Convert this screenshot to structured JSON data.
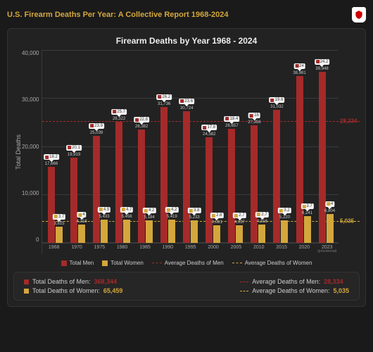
{
  "header": {
    "title": "U.S. Firearm Deaths Per Year: A Collective Report 1968-2024",
    "badge_text": "AMMO.COM"
  },
  "chart": {
    "type": "bar",
    "title": "Firearm Deaths by Year 1968 - 2024",
    "ylabel": "Total Deaths",
    "ymax": 45000,
    "yticks": [
      0,
      10000,
      20000,
      30000,
      40000
    ],
    "ytick_labels": [
      "0",
      "10,000",
      "20,000",
      "30,000",
      "40,000"
    ],
    "men_color": "#a52a2a",
    "women_color": "#d4a73c",
    "background_color": "#222222",
    "grid_color": "#3a3a3a",
    "avg_men": 28334,
    "avg_men_label": "28,334",
    "avg_women": 5035,
    "avg_women_label": "5,035",
    "years": [
      {
        "year": "1968",
        "men": 17666,
        "men_lbl": "17,666",
        "men_rate": "18.2",
        "women": 3815,
        "women_lbl": "3,815",
        "women_rate": "3.7"
      },
      {
        "year": "1970",
        "men": 19919,
        "men_lbl": "19,919",
        "men_rate": "20.1",
        "women": 4218,
        "women_lbl": "4,218",
        "women_rate": "4"
      },
      {
        "year": "1975",
        "men": 25039,
        "men_lbl": "25,039",
        "men_rate": "23.9",
        "women": 5433,
        "women_lbl": "5,433",
        "women_rate": "4.9"
      },
      {
        "year": "1980",
        "men": 28322,
        "men_lbl": "28,322",
        "men_rate": "25.7",
        "women": 5458,
        "women_lbl": "5,458",
        "women_rate": "4.7"
      },
      {
        "year": "1985",
        "men": 26382,
        "men_lbl": "26,382",
        "men_rate": "22.8",
        "women": 5184,
        "women_lbl": "5,184",
        "women_rate": "4.2"
      },
      {
        "year": "1990",
        "men": 31736,
        "men_lbl": "31,736",
        "men_rate": "26.2",
        "women": 5419,
        "women_lbl": "5,419",
        "women_rate": "4.2"
      },
      {
        "year": "1995",
        "men": 30724,
        "men_lbl": "30,724",
        "men_rate": "23.6",
        "women": 5233,
        "women_lbl": "5,233",
        "women_rate": "3.8"
      },
      {
        "year": "2000",
        "men": 24582,
        "men_lbl": "24,582",
        "men_rate": "17.8",
        "women": 4081,
        "women_lbl": "4,081",
        "women_rate": "2.8"
      },
      {
        "year": "2005",
        "men": 26657,
        "men_lbl": "26,657",
        "men_rate": "18.4",
        "women": 4037,
        "women_lbl": "4,037",
        "women_rate": "2.7"
      },
      {
        "year": "2010",
        "men": 27356,
        "men_lbl": "27,356",
        "men_rate": "18",
        "women": 4316,
        "women_lbl": "4,316",
        "women_rate": "2.7"
      },
      {
        "year": "2015",
        "men": 31032,
        "men_lbl": "31,032",
        "men_rate": "19.6",
        "women": 5220,
        "women_lbl": "5,220",
        "women_rate": "3.2"
      },
      {
        "year": "2020",
        "men": 38981,
        "men_lbl": "38,981",
        "men_rate": "24",
        "women": 6241,
        "women_lbl": "6,241",
        "women_rate": "3.7"
      },
      {
        "year": "2023",
        "men": 39948,
        "men_lbl": "39,948",
        "men_rate": "24.2",
        "women": 6804,
        "women_lbl": "6,804",
        "women_rate": "4",
        "provisional": "(provisional)"
      }
    ]
  },
  "legend": {
    "men": "Total Men",
    "women": "Total Women",
    "avg_men": "Average Deaths of Men",
    "avg_women": "Average Deaths of Women"
  },
  "summary": {
    "total_men_k": "Total Deaths of Men:",
    "total_men_v": "368,344",
    "total_women_k": "Total Deaths of Women:",
    "total_women_v": "65,459",
    "avg_men_k": "Average Deaths of Men:",
    "avg_men_v": "28,334",
    "avg_women_k": "Average Deaths of Women:",
    "avg_women_v": "5,035"
  }
}
